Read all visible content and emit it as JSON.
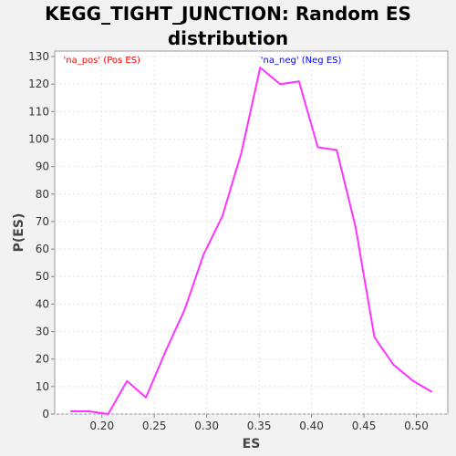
{
  "chart_data": {
    "type": "line",
    "title_line1": "KEGG_TIGHT_JUNCTION: Random ES",
    "title_line2": "distribution",
    "xlabel": "ES",
    "ylabel": "P(ES)",
    "xlim": [
      0.155,
      0.53
    ],
    "ylim": [
      0,
      132
    ],
    "x_ticks": [
      "0.20",
      "0.25",
      "0.30",
      "0.35",
      "0.40",
      "0.45",
      "0.50"
    ],
    "x_tick_values": [
      0.2,
      0.25,
      0.3,
      0.35,
      0.4,
      0.45,
      0.5
    ],
    "y_ticks": [
      "0",
      "10",
      "20",
      "30",
      "40",
      "50",
      "60",
      "70",
      "80",
      "90",
      "100",
      "110",
      "120",
      "130"
    ],
    "y_tick_values": [
      0,
      10,
      20,
      30,
      40,
      50,
      60,
      70,
      80,
      90,
      100,
      110,
      120,
      130
    ],
    "grid": true,
    "annotations": [
      {
        "text": "'na_pos' (Pos ES)",
        "color": "#ff0000",
        "x": 0.2,
        "y": 129
      },
      {
        "text": "'na_neg' (Neg ES)",
        "color": "#0000ff",
        "x": 0.39,
        "y": 129
      }
    ],
    "series": [
      {
        "color": "#ff33ff",
        "x": [
          0.17,
          0.188,
          0.206,
          0.224,
          0.242,
          0.261,
          0.279,
          0.297,
          0.315,
          0.333,
          0.351,
          0.37,
          0.388,
          0.406,
          0.424,
          0.442,
          0.46,
          0.478,
          0.497,
          0.515
        ],
        "y": [
          1,
          1,
          0,
          12,
          6,
          23,
          38,
          58,
          72,
          95,
          126,
          120,
          121,
          97,
          96,
          68,
          28,
          18,
          12,
          8
        ]
      }
    ]
  }
}
